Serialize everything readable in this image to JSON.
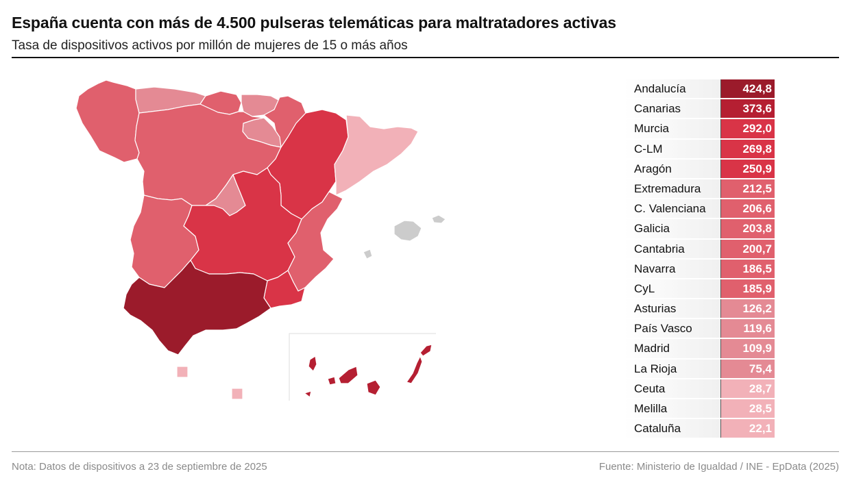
{
  "title": "España cuenta con más de 4.500 pulseras telemáticas para maltratadores activas",
  "subtitle": "Tasa de dispositivos activos por millón de mujeres de 15 o más años",
  "note": "Nota: Datos de dispositivos a 23 de septiembre de 2025",
  "source": "Fuente: Ministerio de Igualdad / INE - EpData (2025)",
  "colors": {
    "darkest": "#9b1b2b",
    "dark": "#b51f32",
    "strong": "#d93447",
    "medium": "#e0606d",
    "mediumlight": "#e48a94",
    "light": "#f2b1b8",
    "nodata": "#cccccc",
    "border": "#ffffff"
  },
  "ranking": [
    {
      "region": "Andalucía",
      "value": "424,8",
      "color": "#9b1b2b"
    },
    {
      "region": "Canarias",
      "value": "373,6",
      "color": "#b51f32"
    },
    {
      "region": "Murcia",
      "value": "292,0",
      "color": "#d93447"
    },
    {
      "region": "C-LM",
      "value": "269,8",
      "color": "#d93447"
    },
    {
      "region": "Aragón",
      "value": "250,9",
      "color": "#d93447"
    },
    {
      "region": "Extremadura",
      "value": "212,5",
      "color": "#e0606d"
    },
    {
      "region": "C. Valenciana",
      "value": "206,6",
      "color": "#e0606d"
    },
    {
      "region": "Galicia",
      "value": "203,8",
      "color": "#e0606d"
    },
    {
      "region": "Cantabria",
      "value": "200,7",
      "color": "#e0606d"
    },
    {
      "region": "Navarra",
      "value": "186,5",
      "color": "#e0606d"
    },
    {
      "region": "CyL",
      "value": "185,9",
      "color": "#e0606d"
    },
    {
      "region": "Asturias",
      "value": "126,2",
      "color": "#e48a94"
    },
    {
      "region": "País Vasco",
      "value": "119,6",
      "color": "#e48a94"
    },
    {
      "region": "Madrid",
      "value": "109,9",
      "color": "#e48a94"
    },
    {
      "region": "La Rioja",
      "value": "75,4",
      "color": "#e48a94"
    },
    {
      "region": "Ceuta",
      "value": "28,7",
      "color": "#f2b1b8"
    },
    {
      "region": "Melilla",
      "value": "28,5",
      "color": "#f2b1b8"
    },
    {
      "region": "Cataluña",
      "value": "22,1",
      "color": "#f2b1b8"
    }
  ]
}
